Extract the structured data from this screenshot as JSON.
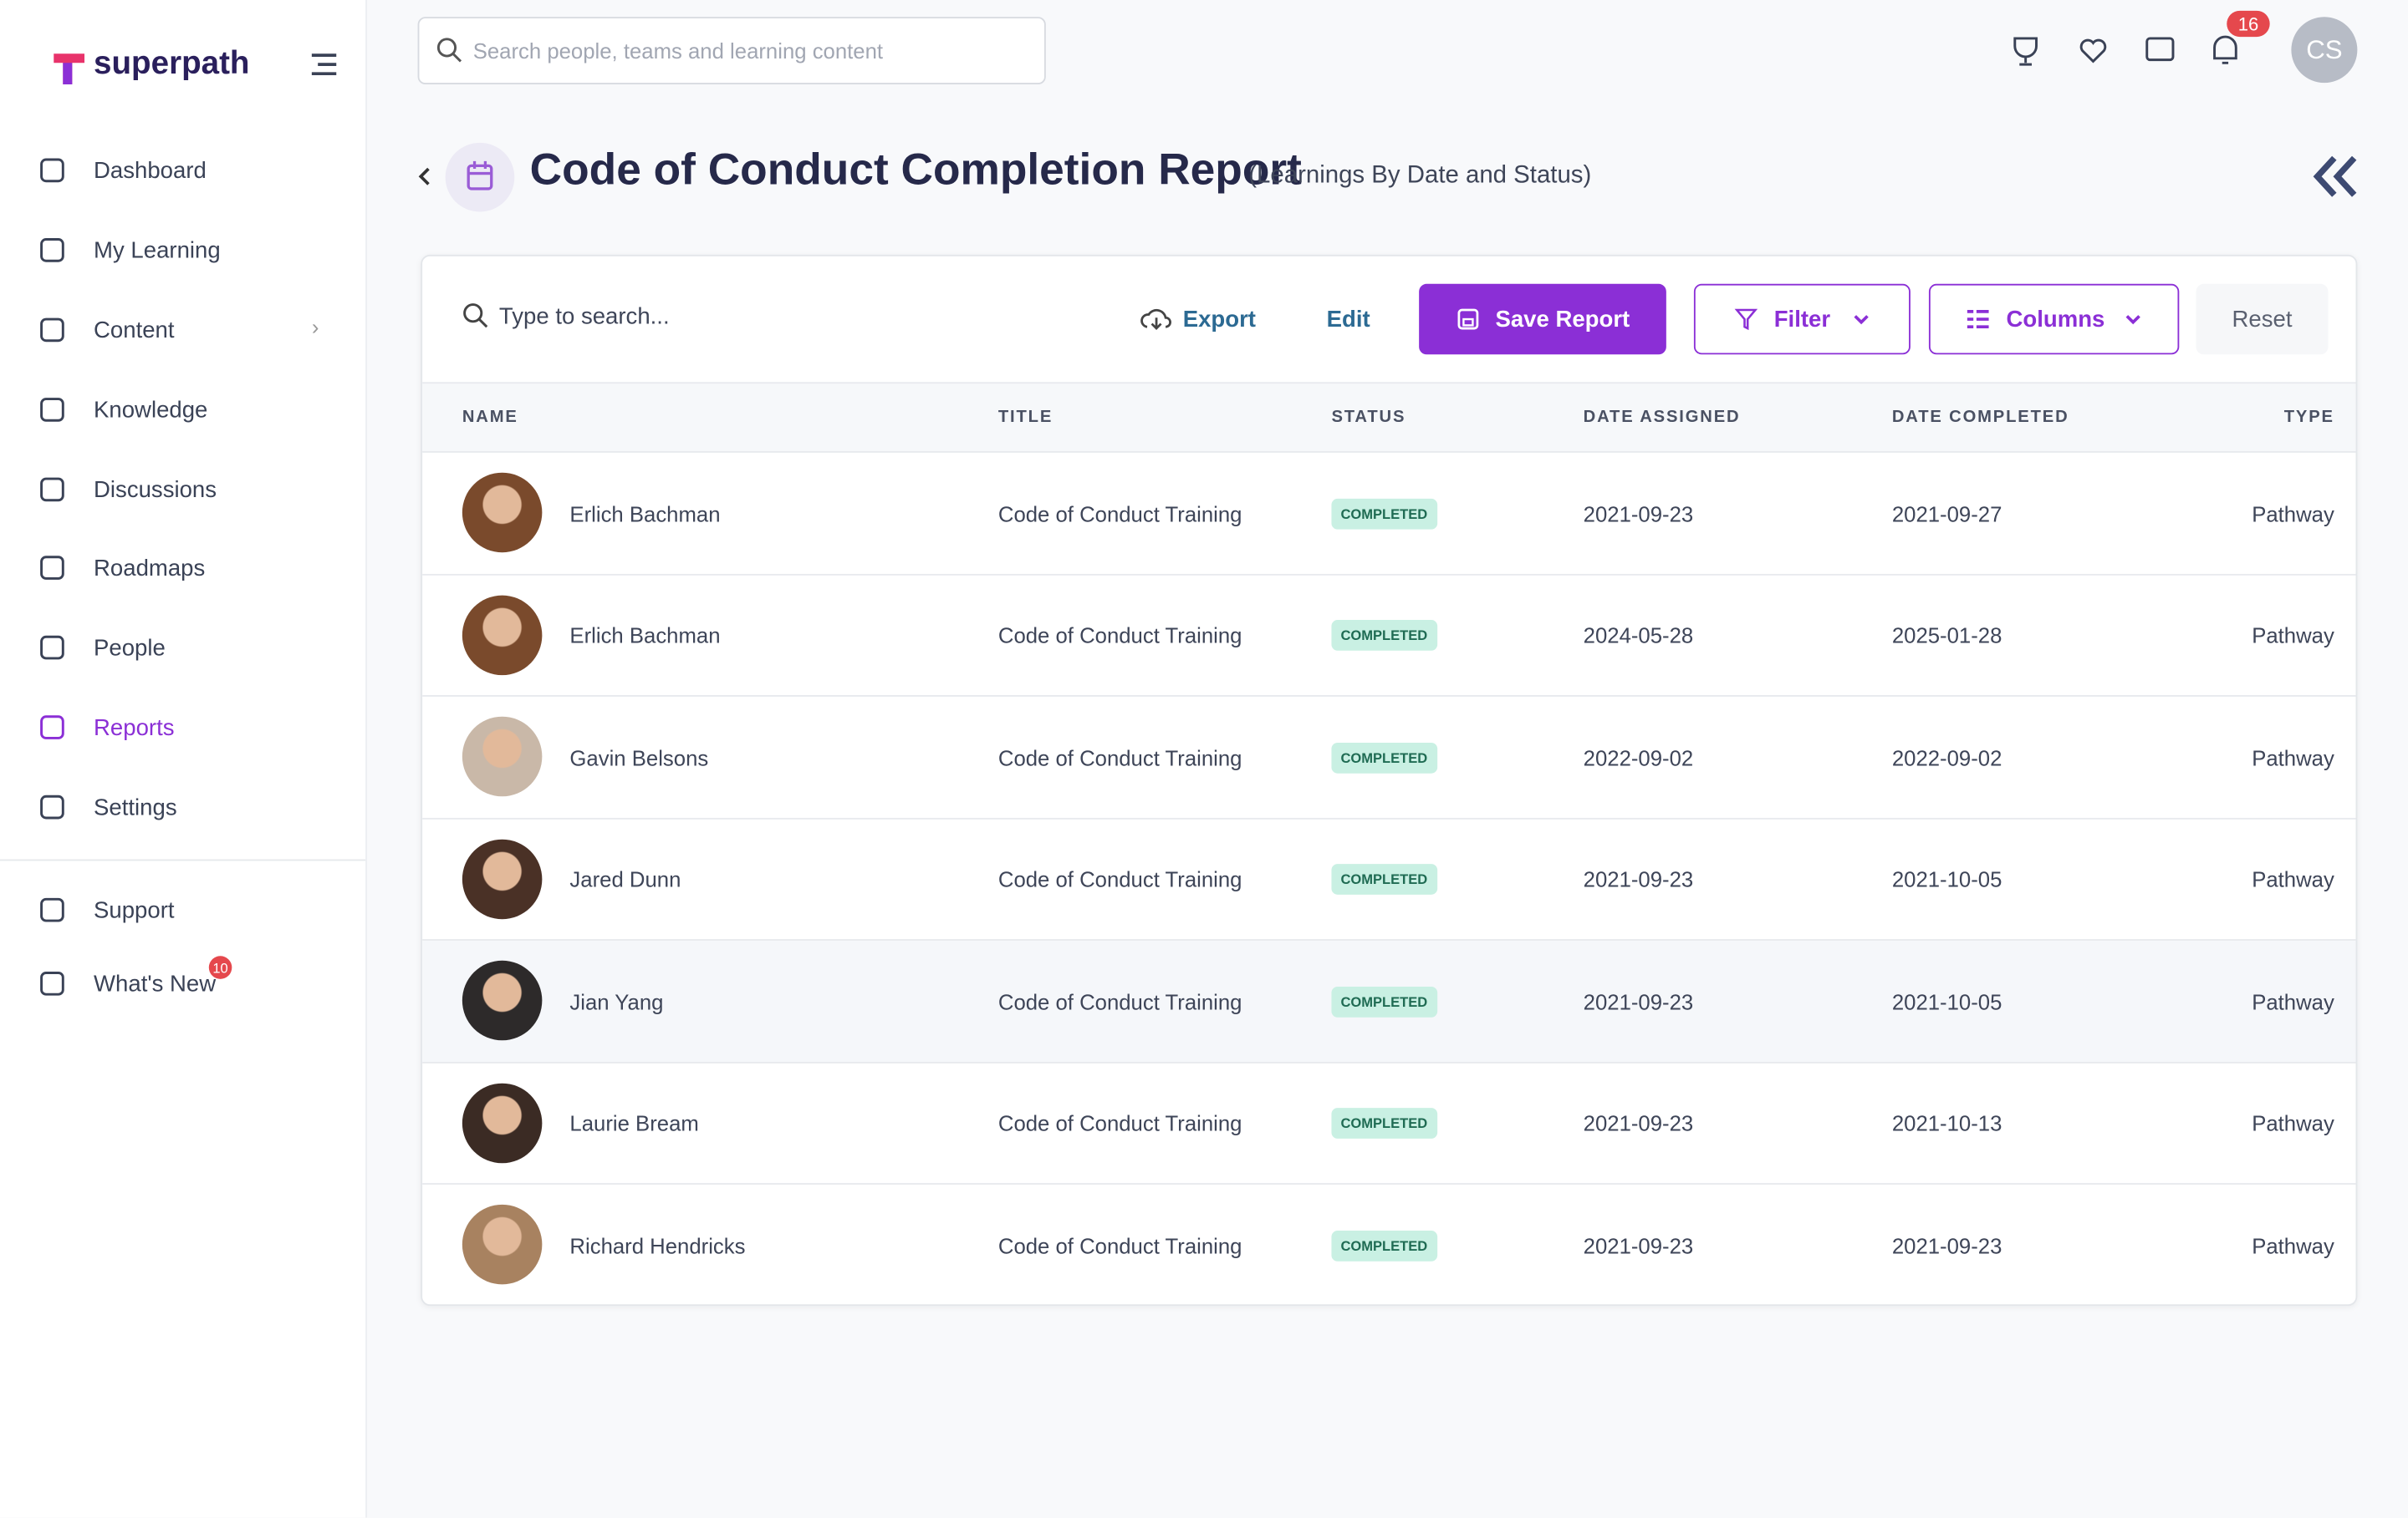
{
  "brand": "superpath",
  "nav": [
    {
      "label": "Dashboard"
    },
    {
      "label": "My Learning"
    },
    {
      "label": "Content"
    },
    {
      "label": "Knowledge"
    },
    {
      "label": "Discussions"
    },
    {
      "label": "Roadmaps"
    },
    {
      "label": "People"
    },
    {
      "label": "Reports"
    },
    {
      "label": "Settings"
    }
  ],
  "nav_footer": [
    {
      "label": "Support"
    },
    {
      "label": "What's New",
      "badge": 10
    }
  ],
  "header": {
    "search_placeholder": "Search people, teams and learning content",
    "notifications": 16,
    "avatar": "CS"
  },
  "page": {
    "title": "Code of Conduct Completion Report",
    "subtitle": "(Learnings By Date and Status)"
  },
  "toolbar": {
    "search_placeholder": "Type to search...",
    "export": "Export",
    "edit": "Edit",
    "save": "Save Report",
    "filter": "Filter",
    "columns": "Columns",
    "reset": "Reset"
  },
  "table": {
    "columns": [
      "NAME",
      "TITLE",
      "STATUS",
      "DATE ASSIGNED",
      "DATE COMPLETED",
      "TYPE"
    ],
    "rows": [
      [
        "Erlich Bachman",
        "Code of Conduct Training",
        "COMPLETED",
        "2021-09-23",
        "2021-09-27",
        "Pathway"
      ],
      [
        "Erlich Bachman",
        "Code of Conduct Training",
        "COMPLETED",
        "2024-05-28",
        "2025-01-28",
        "Pathway"
      ],
      [
        "Gavin Belsons",
        "Code of Conduct Training",
        "COMPLETED",
        "2022-09-02",
        "2022-09-02",
        "Pathway"
      ],
      [
        "Jared Dunn",
        "Code of Conduct Training",
        "COMPLETED",
        "2021-09-23",
        "2021-10-05",
        "Pathway"
      ],
      [
        "Jian Yang",
        "Code of Conduct Training",
        "COMPLETED",
        "2021-09-23",
        "2021-10-05",
        "Pathway"
      ],
      [
        "Laurie Bream",
        "Code of Conduct Training",
        "COMPLETED",
        "2021-09-23",
        "2021-10-13",
        "Pathway"
      ],
      [
        "Richard Hendricks",
        "Code of Conduct Training",
        "COMPLETED",
        "2021-09-23",
        "2021-09-23",
        "Pathway"
      ]
    ]
  }
}
